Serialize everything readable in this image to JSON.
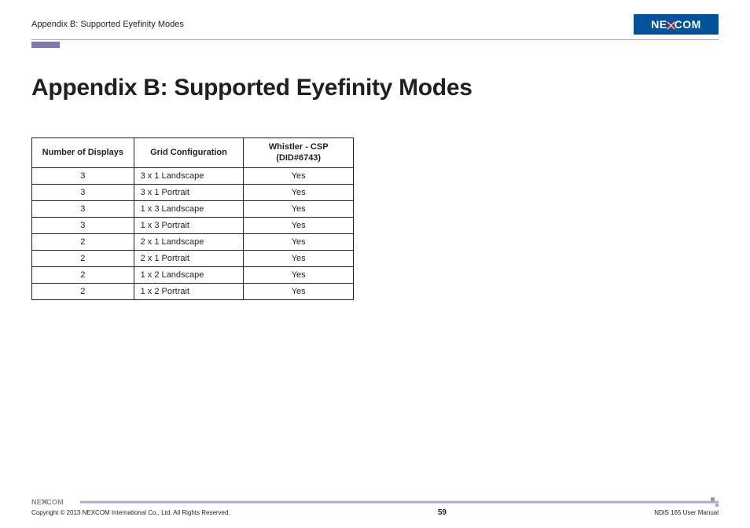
{
  "header": {
    "running_head": "Appendix B: Supported Eyefinity Modes",
    "logo_left": "NE",
    "logo_right": "COM",
    "logo_bg": "#00539b",
    "logo_fg": "#ffffff"
  },
  "title": "Appendix B: Supported Eyefinity Modes",
  "table": {
    "columns": [
      "Number of Displays",
      "Grid Configuration",
      "Whistler - CSP\n(DID#6743)"
    ],
    "rows": [
      [
        "3",
        "3 x 1 Landscape",
        "Yes"
      ],
      [
        "3",
        "3 x 1 Portrait",
        "Yes"
      ],
      [
        "3",
        "1 x 3 Landscape",
        "Yes"
      ],
      [
        "3",
        "1 x 3 Portrait",
        "Yes"
      ],
      [
        "2",
        "2 x 1 Landscape",
        "Yes"
      ],
      [
        "2",
        "2 x 1 Portrait",
        "Yes"
      ],
      [
        "2",
        "1 x 2 Landscape",
        "Yes"
      ],
      [
        "2",
        "1 x 2 Portrait",
        "Yes"
      ]
    ],
    "border_color": "#231f20",
    "header_fontsize": 11,
    "cell_fontsize": 11
  },
  "footer": {
    "logo_left": "NE",
    "logo_right": "COM",
    "copyright": "Copyright © 2013 NEXCOM International Co., Ltd. All Rights Reserved.",
    "page_number": "59",
    "manual_name": "NDiS 165 User Manual"
  },
  "colors": {
    "purple_bar": "#8476b5",
    "rule_light": "#b1a7d3",
    "text": "#231f20",
    "background": "#ffffff"
  }
}
